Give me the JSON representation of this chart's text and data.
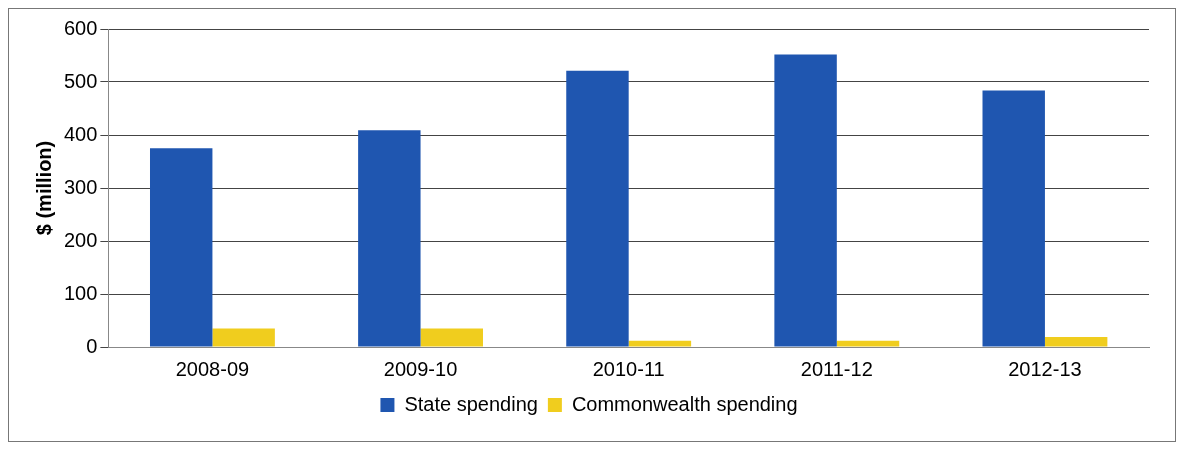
{
  "chart_data": {
    "type": "bar",
    "ylabel": "$ (million)",
    "categories": [
      "2008-09",
      "2009-10",
      "2010-11",
      "2011-12",
      "2012-13"
    ],
    "series": [
      {
        "name": "State spending",
        "color": "#1f56b0",
        "values": [
          375,
          409,
          521,
          552,
          484
        ]
      },
      {
        "name": "Commonwealth spending",
        "color": "#f0cd1e",
        "values": [
          35,
          35,
          12,
          12,
          19
        ]
      }
    ],
    "ylim": [
      0,
      600
    ],
    "yticks": [
      0,
      100,
      200,
      300,
      400,
      500,
      600
    ],
    "grid": "y",
    "legend": "bottom"
  }
}
